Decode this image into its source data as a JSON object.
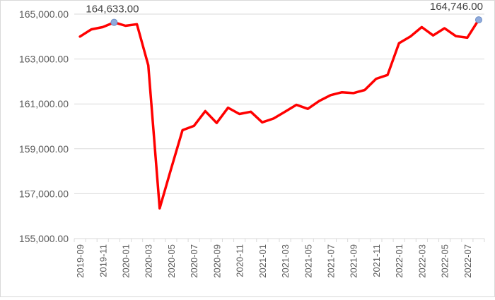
{
  "chart_data": {
    "type": "line",
    "series": [
      {
        "color": "#ff0000",
        "x": [
          "2019-09",
          "2019-10",
          "2019-11",
          "2019-12",
          "2020-01",
          "2020-02",
          "2020-03",
          "2020-04",
          "2020-05",
          "2020-06",
          "2020-07",
          "2020-08",
          "2020-09",
          "2020-10",
          "2020-11",
          "2020-12",
          "2021-01",
          "2021-02",
          "2021-03",
          "2021-04",
          "2021-05",
          "2021-06",
          "2021-07",
          "2021-08",
          "2021-09",
          "2021-10",
          "2021-11",
          "2021-12",
          "2022-01",
          "2022-02",
          "2022-03",
          "2022-04",
          "2022-05",
          "2022-06",
          "2022-07",
          "2022-08"
        ],
        "values": [
          164000,
          164320,
          164420,
          164633,
          164480,
          164550,
          162720,
          156350,
          158100,
          159830,
          160020,
          160680,
          160150,
          160830,
          160550,
          160650,
          160180,
          160350,
          160650,
          160960,
          160780,
          161130,
          161390,
          161520,
          161480,
          161620,
          162120,
          162290,
          163700,
          164000,
          164420,
          164050,
          164370,
          164020,
          163950,
          164746
        ]
      }
    ],
    "x_ticks": [
      "2019-09",
      "2019-11",
      "2020-01",
      "2020-03",
      "2020-05",
      "2020-07",
      "2020-09",
      "2020-11",
      "2021-01",
      "2021-03",
      "2021-05",
      "2021-07",
      "2021-09",
      "2021-11",
      "2022-01",
      "2022-03",
      "2022-05",
      "2022-07"
    ],
    "y_ticks": [
      "155,000.00",
      "157,000.00",
      "159,000.00",
      "161,000.00",
      "163,000.00",
      "165,000.00"
    ],
    "y_tick_values": [
      155000,
      157000,
      159000,
      161000,
      163000,
      165000
    ],
    "ylim": [
      155000,
      165000
    ],
    "annotations": [
      {
        "x": "2019-12",
        "value": 164633,
        "label": "164,633.00"
      },
      {
        "x": "2022-08",
        "value": 164746,
        "label": "164,746.00"
      }
    ],
    "grid": "horizontal",
    "legend": "none",
    "colors": {
      "line": "#ff0000",
      "marker_fill": "#8faadc",
      "marker_stroke": "#6e8fc4",
      "grid": "#d9d9d9",
      "text": "#595959"
    }
  }
}
